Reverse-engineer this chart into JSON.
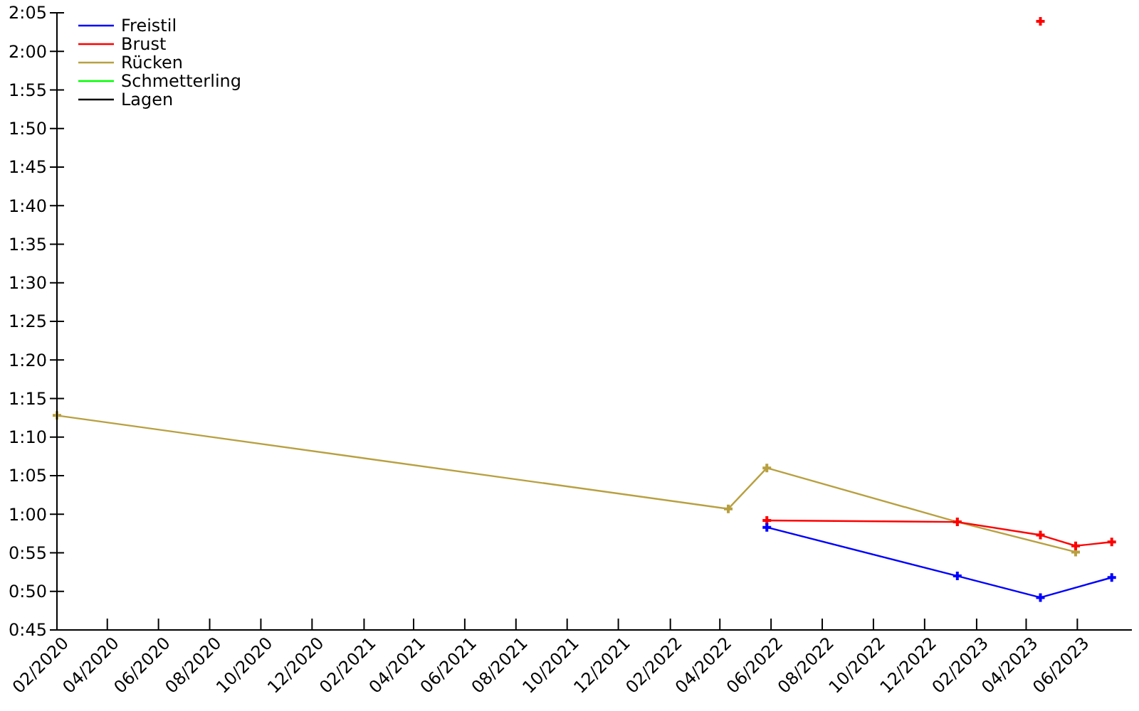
{
  "chart_data": {
    "type": "line",
    "xlim": [
      "2020-02-01",
      "2023-08-05"
    ],
    "ylim": [
      45,
      125
    ],
    "xticks": [
      {
        "value": "2020-02-01",
        "label": "02/2020"
      },
      {
        "value": "2020-04-01",
        "label": "04/2020"
      },
      {
        "value": "2020-06-01",
        "label": "06/2020"
      },
      {
        "value": "2020-08-01",
        "label": "08/2020"
      },
      {
        "value": "2020-10-01",
        "label": "10/2020"
      },
      {
        "value": "2020-12-01",
        "label": "12/2020"
      },
      {
        "value": "2021-02-01",
        "label": "02/2021"
      },
      {
        "value": "2021-04-01",
        "label": "04/2021"
      },
      {
        "value": "2021-06-01",
        "label": "06/2021"
      },
      {
        "value": "2021-08-01",
        "label": "08/2021"
      },
      {
        "value": "2021-10-01",
        "label": "10/2021"
      },
      {
        "value": "2021-12-01",
        "label": "12/2021"
      },
      {
        "value": "2022-02-01",
        "label": "02/2022"
      },
      {
        "value": "2022-04-01",
        "label": "04/2022"
      },
      {
        "value": "2022-06-01",
        "label": "06/2022"
      },
      {
        "value": "2022-08-01",
        "label": "08/2022"
      },
      {
        "value": "2022-10-01",
        "label": "10/2022"
      },
      {
        "value": "2022-12-01",
        "label": "12/2022"
      },
      {
        "value": "2023-02-01",
        "label": "02/2023"
      },
      {
        "value": "2023-04-01",
        "label": "04/2023"
      },
      {
        "value": "2023-06-01",
        "label": "06/2023"
      }
    ],
    "yticks": [
      {
        "value": 45,
        "label": "0:45"
      },
      {
        "value": 50,
        "label": "0:50"
      },
      {
        "value": 55,
        "label": "0:55"
      },
      {
        "value": 60,
        "label": "1:00"
      },
      {
        "value": 65,
        "label": "1:05"
      },
      {
        "value": 70,
        "label": "1:10"
      },
      {
        "value": 75,
        "label": "1:15"
      },
      {
        "value": 80,
        "label": "1:20"
      },
      {
        "value": 85,
        "label": "1:25"
      },
      {
        "value": 90,
        "label": "1:30"
      },
      {
        "value": 95,
        "label": "1:35"
      },
      {
        "value": 100,
        "label": "1:40"
      },
      {
        "value": 105,
        "label": "1:45"
      },
      {
        "value": 110,
        "label": "1:50"
      },
      {
        "value": 115,
        "label": "1:55"
      },
      {
        "value": 120,
        "label": "2:00"
      },
      {
        "value": 125,
        "label": "2:05"
      }
    ],
    "legend": "top left",
    "marker": "cross",
    "grid": false,
    "series": [
      {
        "name": "Freistil",
        "color": "#0000ff",
        "x": [
          "2022-05-27",
          "2023-01-09",
          "2023-04-18",
          "2023-07-12"
        ],
        "values": [
          58.3,
          52.0,
          49.2,
          51.8
        ]
      },
      {
        "name": "Brust",
        "color": "#ff0000",
        "x": [
          "2022-05-27",
          "2023-01-09",
          "2023-04-18",
          "2023-05-30",
          "2023-07-12"
        ],
        "values": [
          59.2,
          59.0,
          57.3,
          55.9,
          56.4
        ]
      },
      {
        "name": "Rücken",
        "color": "#b8a040",
        "x": [
          "2020-02-01",
          "2022-04-11",
          "2022-05-27",
          "2023-01-09",
          "2023-05-30"
        ],
        "values": [
          72.8,
          60.7,
          66.0,
          59.0,
          55.1
        ]
      },
      {
        "name": "Schmetterling",
        "color": "#00ff00"
      },
      {
        "name": "Lagen",
        "color": "#000000"
      },
      {
        "type": "scatter",
        "color": "#ff0000",
        "x": [
          "2023-04-18"
        ],
        "values": [
          123.9
        ]
      }
    ]
  }
}
